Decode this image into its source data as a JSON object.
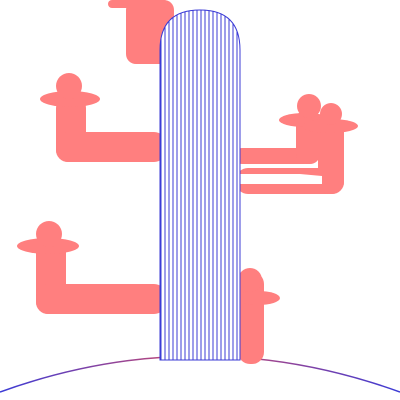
{
  "colors": {
    "background": "#ffffff",
    "arm": "#ff7f7f",
    "trunk_stripe": "#3b3bd6",
    "trunk_fill": "#ffffff",
    "ground_left": "#3b3bd6",
    "ground_right": "#d24a6a"
  },
  "scene": {
    "subject": "cactus-illustration",
    "trunk_pattern": "vertical-stripes",
    "arm_count": 6
  }
}
